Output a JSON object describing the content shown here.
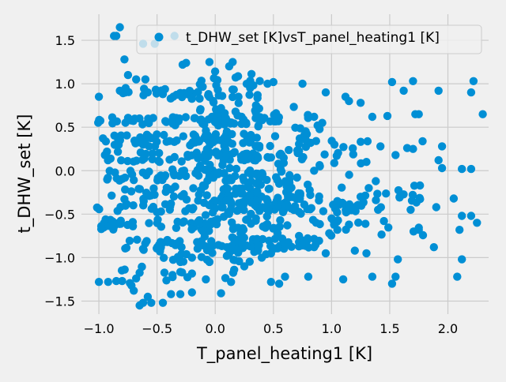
{
  "chart_data": {
    "type": "scatter",
    "title": "",
    "xlabel": "T_panel_heating1 [K]",
    "ylabel": "t_DHW_set [K]",
    "xlim": [
      -1.15,
      2.35
    ],
    "ylim": [
      -1.65,
      1.8
    ],
    "xticks": [
      -1.0,
      -0.5,
      0.0,
      0.5,
      1.0,
      1.5,
      2.0
    ],
    "xtick_labels": [
      "−1.0",
      "−0.5",
      "0.0",
      "0.5",
      "1.0",
      "1.5",
      "2.0"
    ],
    "yticks": [
      -1.5,
      -1.0,
      -0.5,
      0.0,
      0.5,
      1.0,
      1.5
    ],
    "ytick_labels": [
      "−1.5",
      "−1.0",
      "−0.5",
      "0.0",
      "0.5",
      "1.0",
      "1.5"
    ],
    "grid": true,
    "legend_position": "top-right",
    "colors": {
      "series": "#008fd5",
      "background": "#f0f0f0",
      "grid": "#cbcbcb"
    },
    "series": [
      {
        "name": "t_DHW_set [K]vsT_panel_heating1 [K]",
        "points": [
          [
            -0.87,
            1.55
          ],
          [
            -0.85,
            1.55
          ],
          [
            -0.82,
            1.65
          ],
          [
            -0.62,
            1.46
          ],
          [
            -0.52,
            1.46
          ],
          [
            -0.35,
            1.55
          ],
          [
            -0.78,
            1.28
          ],
          [
            -0.75,
            1.1
          ],
          [
            -0.68,
            1.05
          ],
          [
            -0.28,
            1.22
          ],
          [
            -0.25,
            1.24
          ],
          [
            -1.0,
            0.85
          ],
          [
            -0.82,
            0.92
          ],
          [
            -0.77,
            0.95
          ],
          [
            -0.6,
            1.05
          ],
          [
            -0.58,
            0.9
          ],
          [
            -0.45,
            0.88
          ],
          [
            1.52,
            1.02
          ],
          [
            1.7,
            1.03
          ],
          [
            1.62,
            0.92
          ],
          [
            1.92,
            0.92
          ],
          [
            2.22,
            1.03
          ],
          [
            2.2,
            0.9
          ],
          [
            2.3,
            0.65
          ],
          [
            1.48,
            0.63
          ],
          [
            1.72,
            0.65
          ],
          [
            1.75,
            0.65
          ],
          [
            1.35,
            0.62
          ],
          [
            1.42,
            0.28
          ],
          [
            1.55,
            0.18
          ],
          [
            1.65,
            0.26
          ],
          [
            1.7,
            0.25
          ],
          [
            1.95,
            0.28
          ],
          [
            1.92,
            0.12
          ],
          [
            2.12,
            0.02
          ],
          [
            2.2,
            0.02
          ],
          [
            1.95,
            0.03
          ],
          [
            1.76,
            -0.17
          ],
          [
            1.9,
            -0.42
          ],
          [
            2.05,
            -0.32
          ],
          [
            2.12,
            -0.52
          ],
          [
            2.2,
            -0.52
          ],
          [
            2.25,
            -0.6
          ],
          [
            2.1,
            -0.68
          ],
          [
            1.75,
            -0.68
          ],
          [
            1.68,
            -0.45
          ],
          [
            1.88,
            -0.88
          ],
          [
            2.12,
            -1.02
          ],
          [
            2.08,
            -1.22
          ],
          [
            1.55,
            -1.22
          ],
          [
            1.52,
            -1.3
          ],
          [
            1.57,
            -1.02
          ],
          [
            1.3,
            -0.95
          ],
          [
            1.1,
            -1.25
          ],
          [
            1.2,
            -0.92
          ],
          [
            1.35,
            -1.22
          ],
          [
            1.05,
            -0.35
          ],
          [
            1.0,
            -0.55
          ],
          [
            1.15,
            -0.4
          ],
          [
            0.05,
            -1.41
          ],
          [
            0.6,
            -1.22
          ],
          [
            0.55,
            -1.3
          ],
          [
            0.8,
            -1.22
          ],
          [
            0.48,
            -1.28
          ],
          [
            -0.08,
            -1.25
          ],
          [
            -0.2,
            -1.4
          ],
          [
            -0.3,
            -1.42
          ],
          [
            -0.38,
            -1.42
          ],
          [
            -0.45,
            -1.52
          ],
          [
            -0.55,
            -1.52
          ],
          [
            -0.65,
            -1.55
          ],
          [
            -0.62,
            -1.52
          ],
          [
            -0.58,
            -1.45
          ],
          [
            -0.7,
            -1.38
          ],
          [
            -0.72,
            -1.32
          ],
          [
            -0.8,
            -1.27
          ],
          [
            -0.85,
            -1.27
          ],
          [
            -1.0,
            -1.28
          ],
          [
            -0.92,
            -1.28
          ],
          [
            -0.68,
            -1.24
          ],
          [
            0.25,
            0.12
          ],
          [
            0.1,
            0.45
          ],
          [
            0.05,
            0.72
          ],
          [
            0.2,
            0.85
          ],
          [
            0.15,
            1.25
          ],
          [
            0.12,
            1.2
          ],
          [
            -0.05,
            1.25
          ],
          [
            0.3,
            0.95
          ],
          [
            0.45,
            1.0
          ],
          [
            0.5,
            1.02
          ],
          [
            0.75,
            1.0
          ],
          [
            0.95,
            0.9
          ],
          [
            1.12,
            0.85
          ],
          [
            1.15,
            0.8
          ],
          [
            1.25,
            0.78
          ],
          [
            0.88,
            0.52
          ],
          [
            0.85,
            0.62
          ],
          [
            0.92,
            0.55
          ],
          [
            0.82,
            0.32
          ],
          [
            0.78,
            0.35
          ],
          [
            0.9,
            0.05
          ],
          [
            0.85,
            0.0
          ],
          [
            1.3,
            0.1
          ],
          [
            1.38,
            -0.12
          ],
          [
            1.32,
            -0.2
          ],
          [
            1.25,
            -0.3
          ],
          [
            1.4,
            -0.45
          ],
          [
            1.45,
            -0.58
          ],
          [
            1.15,
            -0.62
          ],
          [
            1.05,
            -0.68
          ],
          [
            0.98,
            -0.72
          ],
          [
            0.95,
            -0.95
          ],
          [
            0.85,
            -0.88
          ],
          [
            0.72,
            -0.75
          ],
          [
            0.6,
            -0.85
          ],
          [
            0.48,
            -0.95
          ],
          [
            0.4,
            -1.0
          ],
          [
            0.25,
            -1.1
          ],
          [
            0.1,
            -0.98
          ],
          [
            -0.05,
            -1.05
          ],
          [
            -0.2,
            -1.0
          ],
          [
            -0.3,
            -1.05
          ],
          [
            0.2,
            -0.45
          ],
          [
            0.35,
            -0.55
          ],
          [
            0.45,
            -0.35
          ],
          [
            0.6,
            -0.4
          ],
          [
            0.65,
            -0.2
          ],
          [
            0.55,
            -0.15
          ]
        ],
        "clusters": [
          {
            "x": [
              -1.02,
              0.55
            ],
            "y": [
              0.52,
              0.62
            ],
            "n": 60
          },
          {
            "x": [
              -1.0,
              0.4
            ],
            "y": [
              0.28,
              0.42
            ],
            "n": 60
          },
          {
            "x": [
              -1.0,
              0.6
            ],
            "y": [
              0.1,
              0.22
            ],
            "n": 55
          },
          {
            "x": [
              -0.95,
              0.7
            ],
            "y": [
              -0.12,
              0.02
            ],
            "n": 50
          },
          {
            "x": [
              -0.9,
              0.8
            ],
            "y": [
              -0.35,
              -0.18
            ],
            "n": 60
          },
          {
            "x": [
              -1.02,
              1.3
            ],
            "y": [
              -0.48,
              -0.36
            ],
            "n": 70
          },
          {
            "x": [
              -1.0,
              0.7
            ],
            "y": [
              -0.68,
              -0.55
            ],
            "n": 55
          },
          {
            "x": [
              -0.8,
              0.9
            ],
            "y": [
              -0.9,
              -0.78
            ],
            "n": 50
          },
          {
            "x": [
              -0.85,
              0.2
            ],
            "y": [
              -1.3,
              -1.1
            ],
            "n": 18
          },
          {
            "x": [
              -0.8,
              0.1
            ],
            "y": [
              0.82,
              0.95
            ],
            "n": 25
          },
          {
            "x": [
              -0.15,
              0.4
            ],
            "y": [
              -0.95,
              1.15
            ],
            "n": 160
          },
          {
            "x": [
              0.3,
              0.9
            ],
            "y": [
              -0.9,
              0.8
            ],
            "n": 80
          },
          {
            "x": [
              0.9,
              1.8
            ],
            "y": [
              -0.75,
              0.5
            ],
            "n": 45
          },
          {
            "x": [
              -0.7,
              0.6
            ],
            "y": [
              -1.05,
              -0.85
            ],
            "n": 30
          }
        ]
      }
    ]
  }
}
